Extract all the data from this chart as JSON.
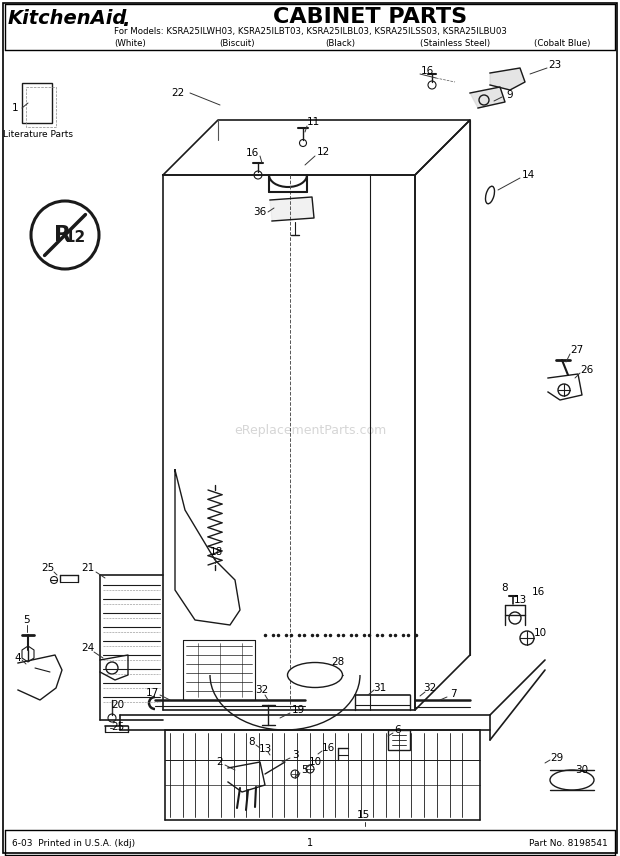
{
  "title": "CABINET PARTS",
  "brand": "KitchenAid",
  "brand_dot": ".",
  "models_line": "For Models: KSRA25ILWH03, KSRA25ILBT03, KSRA25ILBL03, KSRA25ILSS03, KSRA25ILBU03",
  "color_white": "(White)",
  "color_biscuit": "(Biscuit)",
  "color_black": "(Black)",
  "color_ss": "(Stainless Steel)",
  "color_cobalt": "(Cobalt Blue)",
  "footer_left": "6-03  Printed in U.S.A. (kdj)",
  "footer_center": "1",
  "footer_right": "Part No. 8198541",
  "watermark": "eReplacementParts.com",
  "lit_parts": "Literature Parts",
  "bg_color": "#ffffff",
  "text_color": "#000000",
  "dc": "#1a1a1a",
  "gray": "#aaaaaa"
}
